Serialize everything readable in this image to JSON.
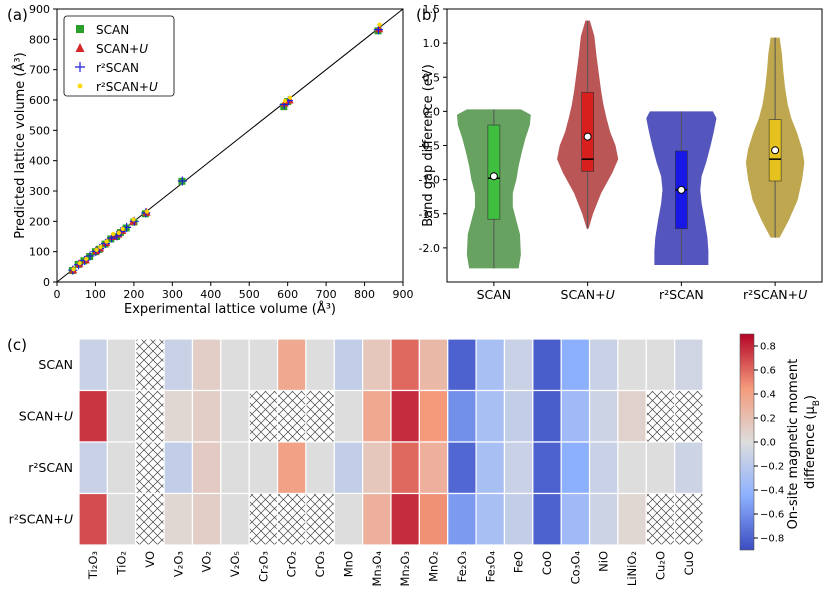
{
  "chart_data": [
    {
      "panel": "(a)",
      "type": "scatter",
      "xlabel": "Experimental lattice volume (Å³)",
      "ylabel": "Predicted lattice volume (Å³)",
      "xlim": [
        0,
        900
      ],
      "ylim": [
        0,
        900
      ],
      "xticks": [
        0,
        100,
        200,
        300,
        400,
        500,
        600,
        700,
        800,
        900
      ],
      "yticks": [
        0,
        100,
        200,
        300,
        400,
        500,
        600,
        700,
        800,
        900
      ],
      "diagonal": [
        [
          0,
          0
        ],
        [
          900,
          900
        ]
      ],
      "legend": {
        "placement": "top-left",
        "entries": [
          "SCAN",
          "SCAN+U",
          "r²SCAN",
          "r²SCAN+U"
        ]
      },
      "series": [
        {
          "name": "SCAN",
          "marker": "square",
          "color": "#2ca02c",
          "points": [
            [
              40,
              38
            ],
            [
              55,
              58
            ],
            [
              70,
              70
            ],
            [
              85,
              84
            ],
            [
              100,
              100
            ],
            [
              110,
              108
            ],
            [
              125,
              125
            ],
            [
              140,
              142
            ],
            [
              155,
              150
            ],
            [
              165,
              163
            ],
            [
              180,
              178
            ],
            [
              200,
              198
            ],
            [
              230,
              225
            ],
            [
              325,
              332
            ],
            [
              590,
              578
            ],
            [
              600,
              595
            ],
            [
              835,
              828
            ]
          ]
        },
        {
          "name": "SCAN+U",
          "marker": "triangle",
          "color": "#d62728",
          "points": [
            [
              42,
              40
            ],
            [
              58,
              60
            ],
            [
              75,
              73
            ],
            [
              102,
              103
            ],
            [
              112,
              112
            ],
            [
              128,
              130
            ],
            [
              145,
              150
            ],
            [
              160,
              158
            ],
            [
              170,
              170
            ],
            [
              198,
              200
            ],
            [
              233,
              230
            ],
            [
              592,
              590
            ],
            [
              605,
              600
            ],
            [
              838,
              835
            ]
          ]
        },
        {
          "name": "r²SCAN",
          "marker": "plus",
          "color": "#1f1fd6",
          "points": [
            [
              41,
              39
            ],
            [
              56,
              57
            ],
            [
              72,
              71
            ],
            [
              86,
              86
            ],
            [
              101,
              101
            ],
            [
              111,
              110
            ],
            [
              126,
              127
            ],
            [
              142,
              145
            ],
            [
              156,
              152
            ],
            [
              166,
              166
            ],
            [
              181,
              180
            ],
            [
              201,
              200
            ],
            [
              231,
              228
            ],
            [
              326,
              333
            ],
            [
              591,
              585
            ],
            [
              602,
              598
            ],
            [
              836,
              832
            ]
          ]
        },
        {
          "name": "r²SCAN+U",
          "marker": "dot",
          "color": "#ffd700",
          "points": [
            [
              43,
              42
            ],
            [
              59,
              62
            ],
            [
              76,
              76
            ],
            [
              103,
              106
            ],
            [
              113,
              115
            ],
            [
              129,
              133
            ],
            [
              146,
              158
            ],
            [
              161,
              162
            ],
            [
              171,
              175
            ],
            [
              199,
              206
            ],
            [
              234,
              232
            ],
            [
              593,
              597
            ],
            [
              606,
              608
            ],
            [
              839,
              848
            ]
          ]
        }
      ]
    },
    {
      "panel": "(b)",
      "type": "violin",
      "ylabel": "Band gap difference (eV)",
      "ylim": [
        -2.5,
        1.5
      ],
      "yticks": [
        -2.0,
        -1.5,
        -1.0,
        -0.5,
        0.0,
        0.5,
        1.0,
        1.5
      ],
      "categories": [
        "SCAN",
        "SCAN+U",
        "r²SCAN",
        "r²SCAN+U"
      ],
      "violins": [
        {
          "name": "SCAN",
          "fill": "#5a9a52",
          "box_color": "#3fbf3f",
          "min": -2.3,
          "max": 0.03,
          "q1": -1.58,
          "median": -0.98,
          "q3": -0.2,
          "mean": -0.95,
          "density": [
            [
              -2.3,
              0.55
            ],
            [
              -2.1,
              0.6
            ],
            [
              -1.8,
              0.58
            ],
            [
              -1.6,
              0.5
            ],
            [
              -1.4,
              0.42
            ],
            [
              -1.2,
              0.42
            ],
            [
              -1.0,
              0.5
            ],
            [
              -0.8,
              0.55
            ],
            [
              -0.6,
              0.62
            ],
            [
              -0.4,
              0.7
            ],
            [
              -0.2,
              0.8
            ],
            [
              -0.05,
              0.82
            ],
            [
              0.03,
              0.6
            ]
          ]
        },
        {
          "name": "SCAN+U",
          "fill": "#b54848",
          "box_color": "#d91e1e",
          "min": -1.72,
          "max": 1.33,
          "q1": -0.88,
          "median": -0.7,
          "q3": 0.28,
          "mean": -0.37,
          "density": [
            [
              -1.72,
              0.02
            ],
            [
              -1.5,
              0.12
            ],
            [
              -1.2,
              0.3
            ],
            [
              -0.9,
              0.55
            ],
            [
              -0.7,
              0.68
            ],
            [
              -0.5,
              0.62
            ],
            [
              -0.3,
              0.5
            ],
            [
              -0.1,
              0.42
            ],
            [
              0.1,
              0.35
            ],
            [
              0.3,
              0.3
            ],
            [
              0.5,
              0.26
            ],
            [
              0.8,
              0.2
            ],
            [
              1.1,
              0.15
            ],
            [
              1.33,
              0.05
            ]
          ]
        },
        {
          "name": "r²SCAN",
          "fill": "#4646b8",
          "box_color": "#1818e6",
          "min": -2.25,
          "max": 0.0,
          "q1": -1.72,
          "median": -1.15,
          "q3": -0.58,
          "mean": -1.15,
          "density": [
            [
              -2.25,
              0.6
            ],
            [
              -2.05,
              0.6
            ],
            [
              -1.85,
              0.58
            ],
            [
              -1.6,
              0.52
            ],
            [
              -1.35,
              0.45
            ],
            [
              -1.15,
              0.42
            ],
            [
              -0.95,
              0.45
            ],
            [
              -0.75,
              0.55
            ],
            [
              -0.5,
              0.65
            ],
            [
              -0.3,
              0.72
            ],
            [
              -0.1,
              0.78
            ],
            [
              0.0,
              0.7
            ]
          ]
        },
        {
          "name": "r²SCAN+U",
          "fill": "#b8a040",
          "box_color": "#e6c21e",
          "min": -1.85,
          "max": 1.08,
          "q1": -1.02,
          "median": -0.7,
          "q3": -0.12,
          "mean": -0.57,
          "density": [
            [
              -1.85,
              0.1
            ],
            [
              -1.6,
              0.3
            ],
            [
              -1.3,
              0.5
            ],
            [
              -1.0,
              0.6
            ],
            [
              -0.75,
              0.65
            ],
            [
              -0.55,
              0.6
            ],
            [
              -0.3,
              0.48
            ],
            [
              -0.1,
              0.36
            ],
            [
              0.1,
              0.28
            ],
            [
              0.35,
              0.22
            ],
            [
              0.6,
              0.18
            ],
            [
              0.85,
              0.15
            ],
            [
              1.08,
              0.1
            ]
          ]
        }
      ]
    },
    {
      "panel": "(c)",
      "type": "heatmap",
      "colorbar_label": "On-site magnetic moment difference (μB)",
      "colorbar_ticks": [
        -0.8,
        -0.6,
        -0.4,
        -0.2,
        0.0,
        0.2,
        0.4,
        0.6,
        0.8
      ],
      "vmin": -0.9,
      "vmax": 0.9,
      "rows": [
        "SCAN",
        "SCAN+U",
        "r²SCAN",
        "r²SCAN+U"
      ],
      "columns": [
        "Ti₂O₃",
        "TiO₂",
        "VO",
        "V₂O₃",
        "VO₂",
        "V₂O₅",
        "Cr₂O₃",
        "CrO₂",
        "CrO₃",
        "MnO",
        "Mn₃O₄",
        "Mn₂O₃",
        "MnO₂",
        "Fe₂O₃",
        "Fe₃O₄",
        "FeO",
        "CoO",
        "Co₃O₄",
        "NiO",
        "LiNiO₂",
        "Cu₂O",
        "CuO"
      ],
      "values": [
        [
          -0.12,
          0.0,
          null,
          -0.12,
          0.1,
          0.0,
          0.0,
          0.35,
          0.0,
          -0.15,
          0.15,
          0.6,
          0.25,
          -0.8,
          -0.3,
          -0.12,
          -0.82,
          -0.45,
          -0.12,
          0.0,
          0.0,
          -0.08
        ],
        [
          0.75,
          0.0,
          null,
          0.05,
          0.1,
          0.0,
          null,
          null,
          null,
          0.0,
          0.35,
          0.78,
          0.45,
          -0.6,
          -0.3,
          -0.15,
          -0.82,
          -0.35,
          -0.1,
          0.08,
          null,
          null
        ],
        [
          -0.12,
          0.0,
          null,
          -0.15,
          0.12,
          0.0,
          0.0,
          0.4,
          0.0,
          -0.15,
          0.15,
          0.6,
          0.3,
          -0.78,
          -0.3,
          -0.12,
          -0.8,
          -0.45,
          -0.12,
          0.0,
          0.0,
          -0.1
        ],
        [
          0.68,
          0.0,
          null,
          0.05,
          0.1,
          0.0,
          null,
          null,
          null,
          0.0,
          0.3,
          0.78,
          0.48,
          -0.55,
          -0.3,
          -0.15,
          -0.8,
          -0.35,
          -0.1,
          0.05,
          null,
          null
        ]
      ]
    }
  ],
  "labels": {
    "panel_a": "(a)",
    "panel_b": "(b)",
    "panel_c": "(c)",
    "cbar_line1": "On-site magnetic moment",
    "cbar_line2": "difference (μ",
    "cbar_sub": "B",
    "cbar_close": ")"
  }
}
